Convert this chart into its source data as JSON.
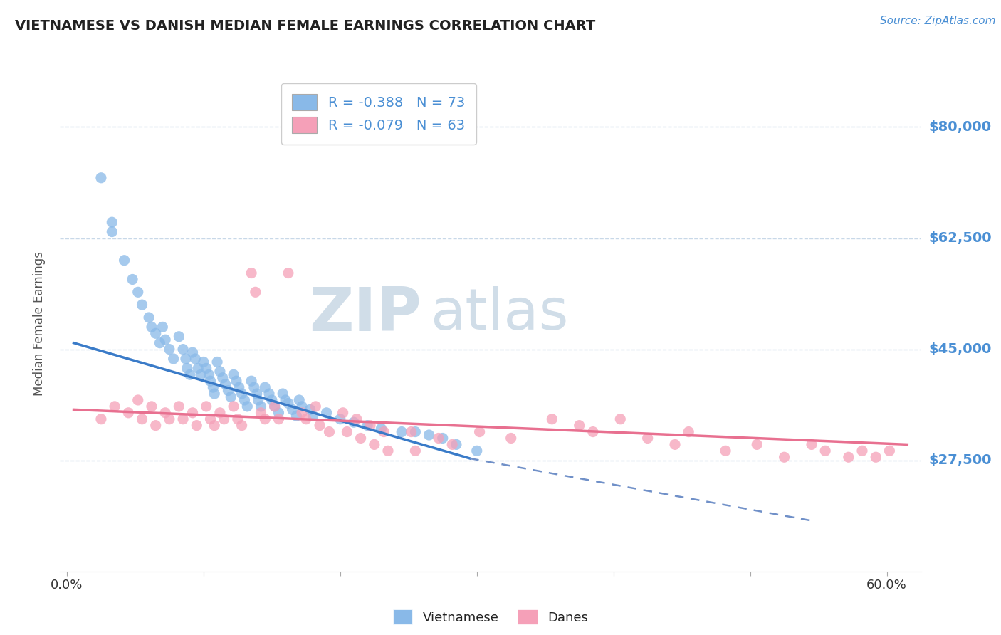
{
  "title": "VIETNAMESE VS DANISH MEDIAN FEMALE EARNINGS CORRELATION CHART",
  "source": "Source: ZipAtlas.com",
  "ylabel": "Median Female Earnings",
  "xlim": [
    -0.005,
    0.625
  ],
  "ylim": [
    10000,
    88000
  ],
  "yticks": [
    27500,
    45000,
    62500,
    80000
  ],
  "ytick_labels": [
    "$27,500",
    "$45,000",
    "$62,500",
    "$80,000"
  ],
  "xticks": [
    0.0,
    0.1,
    0.2,
    0.3,
    0.4,
    0.5,
    0.6
  ],
  "xtick_labels": [
    "0.0%",
    "",
    "",
    "",
    "",
    "",
    "60.0%"
  ],
  "background_color": "#ffffff",
  "grid_color": "#c8d8e8",
  "title_color": "#222222",
  "axis_label_color": "#555555",
  "ytick_color": "#4a8fd4",
  "xtick_color": "#333333",
  "watermark_zip": "ZIP",
  "watermark_atlas": "atlas",
  "watermark_color": "#d0dde8",
  "viet_color": "#89b9e8",
  "dane_color": "#f5a0b8",
  "viet_line_color": "#3a7bc8",
  "dane_line_color": "#e87090",
  "dash_line_color": "#7090c8",
  "viet_scatter": [
    [
      0.025,
      72000
    ],
    [
      0.033,
      65000
    ],
    [
      0.033,
      63500
    ],
    [
      0.042,
      59000
    ],
    [
      0.048,
      56000
    ],
    [
      0.052,
      54000
    ],
    [
      0.055,
      52000
    ],
    [
      0.06,
      50000
    ],
    [
      0.062,
      48500
    ],
    [
      0.065,
      47500
    ],
    [
      0.068,
      46000
    ],
    [
      0.07,
      48500
    ],
    [
      0.072,
      46500
    ],
    [
      0.075,
      45000
    ],
    [
      0.078,
      43500
    ],
    [
      0.082,
      47000
    ],
    [
      0.085,
      45000
    ],
    [
      0.087,
      43500
    ],
    [
      0.088,
      42000
    ],
    [
      0.09,
      41000
    ],
    [
      0.092,
      44500
    ],
    [
      0.094,
      43500
    ],
    [
      0.096,
      42000
    ],
    [
      0.098,
      41000
    ],
    [
      0.1,
      43000
    ],
    [
      0.102,
      42000
    ],
    [
      0.104,
      41000
    ],
    [
      0.105,
      40000
    ],
    [
      0.107,
      39000
    ],
    [
      0.108,
      38000
    ],
    [
      0.11,
      43000
    ],
    [
      0.112,
      41500
    ],
    [
      0.114,
      40500
    ],
    [
      0.116,
      39500
    ],
    [
      0.118,
      38500
    ],
    [
      0.12,
      37500
    ],
    [
      0.122,
      41000
    ],
    [
      0.124,
      40000
    ],
    [
      0.126,
      39000
    ],
    [
      0.128,
      38000
    ],
    [
      0.13,
      37000
    ],
    [
      0.132,
      36000
    ],
    [
      0.135,
      40000
    ],
    [
      0.137,
      39000
    ],
    [
      0.139,
      38000
    ],
    [
      0.14,
      37000
    ],
    [
      0.142,
      36000
    ],
    [
      0.145,
      39000
    ],
    [
      0.148,
      38000
    ],
    [
      0.15,
      37000
    ],
    [
      0.152,
      36000
    ],
    [
      0.155,
      35000
    ],
    [
      0.158,
      38000
    ],
    [
      0.16,
      37000
    ],
    [
      0.162,
      36500
    ],
    [
      0.165,
      35500
    ],
    [
      0.168,
      34500
    ],
    [
      0.17,
      37000
    ],
    [
      0.172,
      36000
    ],
    [
      0.178,
      35500
    ],
    [
      0.18,
      34500
    ],
    [
      0.19,
      35000
    ],
    [
      0.2,
      34000
    ],
    [
      0.21,
      33500
    ],
    [
      0.22,
      33000
    ],
    [
      0.23,
      32500
    ],
    [
      0.245,
      32000
    ],
    [
      0.255,
      32000
    ],
    [
      0.265,
      31500
    ],
    [
      0.275,
      31000
    ],
    [
      0.285,
      30000
    ],
    [
      0.3,
      29000
    ]
  ],
  "dane_scatter": [
    [
      0.025,
      34000
    ],
    [
      0.035,
      36000
    ],
    [
      0.045,
      35000
    ],
    [
      0.052,
      37000
    ],
    [
      0.055,
      34000
    ],
    [
      0.062,
      36000
    ],
    [
      0.065,
      33000
    ],
    [
      0.072,
      35000
    ],
    [
      0.075,
      34000
    ],
    [
      0.082,
      36000
    ],
    [
      0.085,
      34000
    ],
    [
      0.092,
      35000
    ],
    [
      0.095,
      33000
    ],
    [
      0.102,
      36000
    ],
    [
      0.105,
      34000
    ],
    [
      0.108,
      33000
    ],
    [
      0.112,
      35000
    ],
    [
      0.115,
      34000
    ],
    [
      0.122,
      36000
    ],
    [
      0.125,
      34000
    ],
    [
      0.128,
      33000
    ],
    [
      0.135,
      57000
    ],
    [
      0.138,
      54000
    ],
    [
      0.142,
      35000
    ],
    [
      0.145,
      34000
    ],
    [
      0.152,
      36000
    ],
    [
      0.155,
      34000
    ],
    [
      0.162,
      57000
    ],
    [
      0.172,
      35000
    ],
    [
      0.175,
      34000
    ],
    [
      0.182,
      36000
    ],
    [
      0.185,
      33000
    ],
    [
      0.192,
      32000
    ],
    [
      0.202,
      35000
    ],
    [
      0.205,
      32000
    ],
    [
      0.212,
      34000
    ],
    [
      0.215,
      31000
    ],
    [
      0.222,
      33000
    ],
    [
      0.225,
      30000
    ],
    [
      0.232,
      32000
    ],
    [
      0.235,
      29000
    ],
    [
      0.252,
      32000
    ],
    [
      0.255,
      29000
    ],
    [
      0.272,
      31000
    ],
    [
      0.282,
      30000
    ],
    [
      0.302,
      32000
    ],
    [
      0.325,
      31000
    ],
    [
      0.355,
      34000
    ],
    [
      0.375,
      33000
    ],
    [
      0.385,
      32000
    ],
    [
      0.405,
      34000
    ],
    [
      0.425,
      31000
    ],
    [
      0.445,
      30000
    ],
    [
      0.455,
      32000
    ],
    [
      0.482,
      29000
    ],
    [
      0.505,
      30000
    ],
    [
      0.525,
      28000
    ],
    [
      0.545,
      30000
    ],
    [
      0.555,
      29000
    ],
    [
      0.572,
      28000
    ],
    [
      0.582,
      29000
    ],
    [
      0.592,
      28000
    ],
    [
      0.602,
      29000
    ]
  ],
  "viet_trend_x": [
    0.005,
    0.295
  ],
  "viet_trend_y": [
    46000,
    27800
  ],
  "dane_trend_x": [
    0.005,
    0.615
  ],
  "dane_trend_y": [
    35500,
    30000
  ],
  "dash_trend_x": [
    0.295,
    0.545
  ],
  "dash_trend_y": [
    27800,
    18000
  ]
}
